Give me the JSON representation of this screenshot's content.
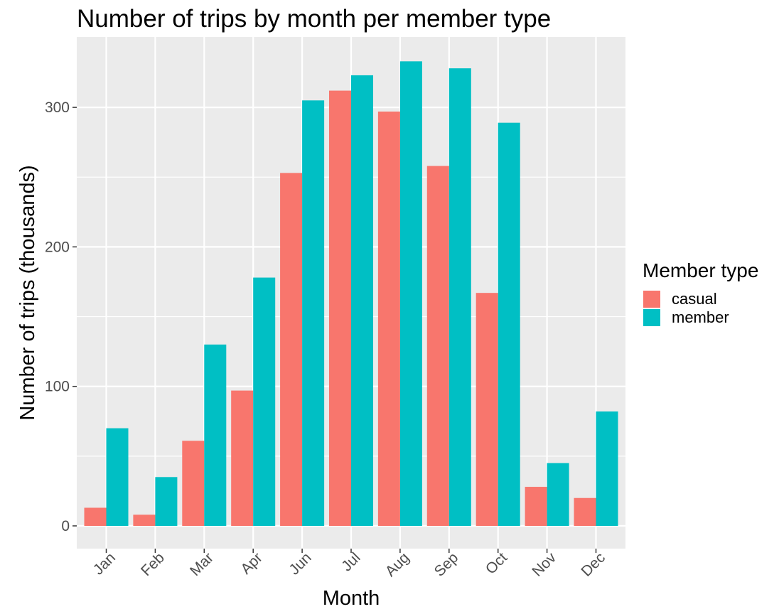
{
  "chart_data": {
    "type": "bar",
    "title": "Number of trips by month per member type",
    "xlabel": "Month",
    "ylabel": "Number of trips (thousands)",
    "categories": [
      "Jan",
      "Feb",
      "Mar",
      "Apr",
      "Jun",
      "Jul",
      "Aug",
      "Sep",
      "Oct",
      "Nov",
      "Dec"
    ],
    "series": [
      {
        "name": "casual",
        "color": "#F8766D",
        "values": [
          13,
          8,
          61,
          97,
          253,
          312,
          297,
          258,
          167,
          28,
          20
        ]
      },
      {
        "name": "member",
        "color": "#00BFC4",
        "values": [
          70,
          35,
          130,
          178,
          305,
          323,
          333,
          328,
          289,
          45,
          82
        ]
      }
    ],
    "ylim": [
      0,
      345
    ],
    "y_ticks": [
      0,
      100,
      200,
      300
    ],
    "y_tick_labels": [
      "0",
      "100",
      "200",
      "300"
    ],
    "grid": true,
    "panel_background": "#EBEBEB",
    "grid_color": "#FFFFFF",
    "legend": {
      "title": "Member type",
      "position": "right"
    }
  }
}
